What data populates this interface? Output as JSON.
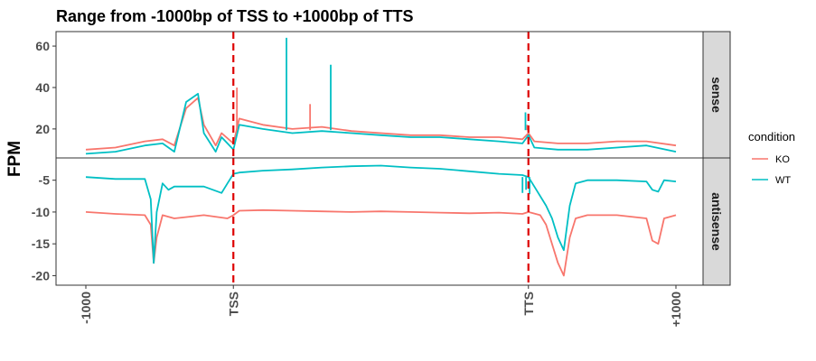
{
  "chart_data": {
    "type": "line",
    "title": "Range from -1000bp of TSS to +1000bp of TTS",
    "ylabel": "FPM",
    "xlabel": "",
    "x_ticks": [
      "-1000",
      "TSS",
      "TTS",
      "+1000"
    ],
    "x_domain": [
      0,
      100
    ],
    "x_tick_positions": [
      0,
      25,
      75,
      100
    ],
    "vlines": [
      25,
      75
    ],
    "vline_color": "#dd0000",
    "legend": {
      "title": "condition",
      "position": "right"
    },
    "colors": {
      "KO": "#F8766D",
      "WT": "#00BFC4"
    },
    "panels": [
      {
        "strip": "sense",
        "ylim": [
          6,
          67
        ],
        "yticks": [
          20,
          40,
          60
        ],
        "series": [
          {
            "name": "KO",
            "x": [
              0,
              5,
              10,
              13,
              15,
              17,
              19,
              20,
              22,
              23,
              25,
              26,
              30,
              35,
              40,
              45,
              50,
              55,
              60,
              65,
              70,
              74,
              75,
              76,
              80,
              85,
              90,
              95,
              100
            ],
            "y": [
              10,
              11,
              14,
              15,
              12,
              30,
              35,
              22,
              12,
              18,
              13,
              25,
              22,
              20,
              21,
              19,
              18,
              17,
              17,
              16,
              16,
              15,
              18,
              14,
              13,
              13,
              14,
              14,
              12
            ]
          },
          {
            "name": "WT",
            "x": [
              0,
              5,
              10,
              13,
              15,
              17,
              19,
              20,
              22,
              23,
              25,
              26,
              30,
              35,
              40,
              45,
              50,
              55,
              60,
              65,
              70,
              74,
              75,
              76,
              80,
              85,
              90,
              95,
              100
            ],
            "y": [
              8,
              9,
              12,
              13,
              9,
              33,
              37,
              18,
              9,
              16,
              10,
              22,
              20,
              18,
              19,
              18,
              17,
              16,
              16,
              15,
              14,
              13,
              17,
              11,
              10,
              10,
              11,
              12,
              9
            ]
          }
        ],
        "spikes": [
          {
            "name": "WT",
            "x": [
              34,
              41.5,
              74.5
            ],
            "y": [
              64,
              51,
              28
            ]
          },
          {
            "name": "KO",
            "x": [
              25.6,
              38,
              74.8
            ],
            "y": [
              40,
              32,
              22
            ]
          }
        ]
      },
      {
        "strip": "antisense",
        "ylim": [
          -21.5,
          -1.5
        ],
        "yticks": [
          -5,
          -10,
          -15,
          -20
        ],
        "series": [
          {
            "name": "KO",
            "x": [
              0,
              5,
              10,
              11,
              11.5,
              12,
              13,
              15,
              20,
              24,
              25,
              26,
              30,
              35,
              40,
              45,
              50,
              55,
              60,
              65,
              70,
              74,
              75,
              77,
              78,
              80,
              81,
              82,
              83,
              85,
              90,
              95,
              96,
              97,
              98,
              100
            ],
            "y": [
              -10,
              -10.3,
              -10.5,
              -12,
              -18,
              -14,
              -10.5,
              -11,
              -10.5,
              -11,
              -10.5,
              -9.8,
              -9.7,
              -9.8,
              -9.9,
              -10,
              -9.9,
              -10,
              -10.1,
              -10.2,
              -10.1,
              -10.3,
              -10,
              -10.5,
              -12,
              -18,
              -20,
              -14,
              -11,
              -10.5,
              -10.5,
              -11,
              -14.5,
              -15,
              -11,
              -10.5
            ]
          },
          {
            "name": "WT",
            "x": [
              0,
              5,
              10,
              11,
              11.5,
              12,
              13,
              14,
              15,
              20,
              23,
              24,
              25,
              26,
              30,
              35,
              40,
              45,
              50,
              55,
              60,
              65,
              70,
              74,
              75,
              76,
              78,
              79,
              80,
              81,
              82,
              83,
              85,
              90,
              95,
              96,
              97,
              98,
              100
            ],
            "y": [
              -4.5,
              -4.8,
              -4.8,
              -8,
              -18,
              -10,
              -5.5,
              -6.5,
              -6,
              -6,
              -7,
              -5.5,
              -4,
              -3.8,
              -3.5,
              -3.3,
              -3,
              -2.8,
              -2.7,
              -3,
              -3.2,
              -3.6,
              -4,
              -4.2,
              -4.5,
              -6,
              -9,
              -11,
              -14,
              -16,
              -9,
              -5.5,
              -5,
              -5,
              -5.2,
              -6.5,
              -6.8,
              -5,
              -5.2
            ]
          }
        ],
        "spikes": [
          {
            "name": "WT",
            "x": [
              74,
              74.6,
              75.2
            ],
            "y": [
              -7,
              -6.5,
              -7.2
            ]
          }
        ]
      }
    ]
  }
}
